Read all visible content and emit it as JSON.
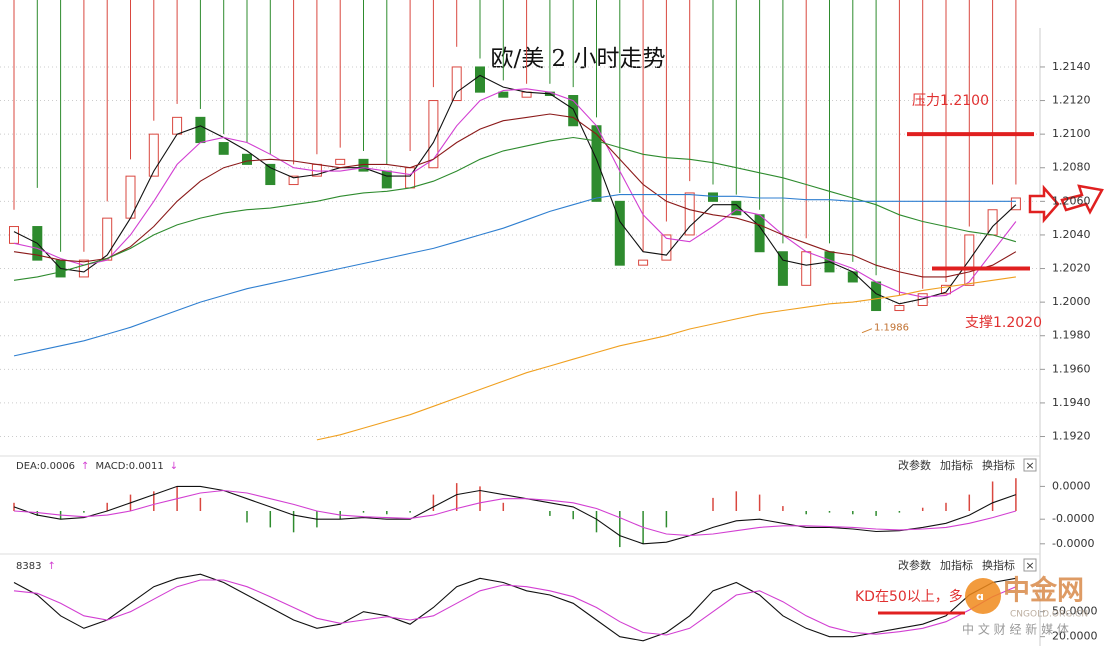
{
  "chart_data": [
    {
      "type": "candlestick",
      "title": "欧/美 2 小时走势",
      "open": [
        1.2035,
        1.2045,
        1.2025,
        1.2015,
        1.2025,
        1.205,
        1.2075,
        1.21,
        1.211,
        1.2095,
        1.2088,
        1.2082,
        1.207,
        1.2075,
        1.2082,
        1.2085,
        1.2078,
        1.2068,
        1.208,
        1.212,
        1.214,
        1.2125,
        1.2122,
        1.2125,
        1.2123,
        1.2105,
        1.206,
        1.2022,
        1.2025,
        1.204,
        1.2065,
        1.206,
        1.2052,
        1.203,
        1.201,
        1.203,
        1.2018,
        1.2012,
        1.1995,
        1.1998,
        1.2005,
        1.201,
        1.204,
        1.2055
      ],
      "high": [
        1.2055,
        1.2068,
        1.203,
        1.203,
        1.206,
        1.2085,
        1.2108,
        1.2118,
        1.2115,
        1.21,
        1.2095,
        1.2088,
        1.2082,
        1.2088,
        1.2092,
        1.209,
        1.2082,
        1.209,
        1.2128,
        1.2152,
        1.2145,
        1.2132,
        1.213,
        1.213,
        1.2128,
        1.211,
        1.2065,
        1.203,
        1.2048,
        1.2072,
        1.207,
        1.2064,
        1.2055,
        1.2035,
        1.2038,
        1.2035,
        1.2024,
        1.2016,
        1.2004,
        1.2008,
        1.2012,
        1.2045,
        1.207,
        1.207
      ],
      "low": 1.1986,
      "close": [
        1.2045,
        1.2025,
        1.2015,
        1.2025,
        1.205,
        1.2075,
        1.21,
        1.211,
        1.2095,
        1.2088,
        1.2082,
        1.207,
        1.2075,
        1.2082,
        1.2085,
        1.2078,
        1.2068,
        1.208,
        1.212,
        1.214,
        1.2125,
        1.2122,
        1.2125,
        1.2123,
        1.2105,
        1.206,
        1.2022,
        1.2025,
        1.204,
        1.2065,
        1.206,
        1.2052,
        1.203,
        1.201,
        1.203,
        1.2018,
        1.2012,
        1.1995,
        1.1998,
        1.2005,
        1.201,
        1.204,
        1.2055,
        1.2062
      ],
      "up_color": "#d9473f",
      "down_color": "#2e8b2e",
      "series": [
        {
          "color": "#111111",
          "values": [
            1.2042,
            1.2035,
            1.202,
            1.2018,
            1.2028,
            1.205,
            1.2078,
            1.21,
            1.2105,
            1.2098,
            1.209,
            1.208,
            1.2074,
            1.2076,
            1.208,
            1.208,
            1.2075,
            1.2075,
            1.2095,
            1.2125,
            1.2135,
            1.2128,
            1.2125,
            1.2124,
            1.2115,
            1.2085,
            1.2048,
            1.203,
            1.2028,
            1.2045,
            1.2058,
            1.2058,
            1.2045,
            1.2025,
            1.2022,
            1.2024,
            1.2018,
            1.2005,
            1.1999,
            1.2002,
            1.2006,
            1.2025,
            1.2045,
            1.2058
          ]
        },
        {
          "color": "#d23fd2",
          "values": [
            1.2035,
            1.2032,
            1.2026,
            1.2022,
            1.2025,
            1.204,
            1.206,
            1.2082,
            1.2095,
            1.2098,
            1.2095,
            1.2088,
            1.208,
            1.2078,
            1.2078,
            1.208,
            1.2078,
            1.2076,
            1.2085,
            1.2105,
            1.212,
            1.2126,
            1.2127,
            1.2125,
            1.212,
            1.2105,
            1.2078,
            1.2052,
            1.2038,
            1.2036,
            1.2045,
            1.2055,
            1.2052,
            1.204,
            1.203,
            1.2025,
            1.202,
            1.2012,
            1.2006,
            1.2003,
            1.2004,
            1.2012,
            1.203,
            1.2048
          ]
        },
        {
          "color": "#8b1a1a",
          "values": [
            1.203,
            1.2028,
            1.2025,
            1.2024,
            1.2026,
            1.2033,
            1.2045,
            1.206,
            1.2072,
            1.208,
            1.2084,
            1.2085,
            1.2084,
            1.2082,
            1.208,
            1.2082,
            1.2082,
            1.208,
            1.2085,
            1.2095,
            1.2103,
            1.2108,
            1.211,
            1.2112,
            1.211,
            1.21,
            1.2085,
            1.207,
            1.206,
            1.2055,
            1.2052,
            1.205,
            1.2046,
            1.204,
            1.2035,
            1.203,
            1.2028,
            1.2022,
            1.2018,
            1.2015,
            1.2015,
            1.2018,
            1.2022,
            1.203
          ]
        },
        {
          "color": "#2e8b2e",
          "values": [
            1.2013,
            1.2015,
            1.2018,
            1.2022,
            1.2026,
            1.2032,
            1.204,
            1.2046,
            1.205,
            1.2053,
            1.2055,
            1.2056,
            1.2058,
            1.206,
            1.2063,
            1.2065,
            1.2066,
            1.2068,
            1.2072,
            1.2078,
            1.2085,
            1.209,
            1.2093,
            1.2096,
            1.2098,
            1.2096,
            1.2092,
            1.2088,
            1.2086,
            1.2085,
            1.2083,
            1.208,
            1.2077,
            1.2074,
            1.207,
            1.2066,
            1.2062,
            1.2058,
            1.2052,
            1.2048,
            1.2045,
            1.2042,
            1.204,
            1.2036
          ]
        },
        {
          "color": "#2f7fd0",
          "values": [
            1.1968,
            1.1971,
            1.1974,
            1.1977,
            1.1981,
            1.1985,
            1.199,
            1.1995,
            1.2,
            1.2004,
            1.2008,
            1.2011,
            1.2014,
            1.2017,
            1.202,
            1.2023,
            1.2026,
            1.2029,
            1.2032,
            1.2036,
            1.204,
            1.2044,
            1.2049,
            1.2054,
            1.2058,
            1.2062,
            1.2064,
            1.2064,
            1.2064,
            1.2064,
            1.2063,
            1.2063,
            1.2062,
            1.2062,
            1.2061,
            1.2061,
            1.206,
            1.206,
            1.206,
            1.206,
            1.206,
            1.206,
            1.206,
            1.206
          ]
        },
        {
          "color": "#f0a020",
          "values": [
            null,
            null,
            null,
            null,
            null,
            null,
            null,
            null,
            null,
            null,
            null,
            null,
            null,
            1.1918,
            1.1921,
            1.1925,
            1.1929,
            1.1933,
            1.1938,
            1.1943,
            1.1948,
            1.1953,
            1.1958,
            1.1962,
            1.1966,
            1.197,
            1.1974,
            1.1977,
            1.198,
            1.1984,
            1.1987,
            1.199,
            1.1993,
            1.1995,
            1.1997,
            1.1999,
            1.2,
            1.2002,
            1.2004,
            1.2007,
            1.2009,
            1.2011,
            1.2013,
            1.2015
          ]
        }
      ],
      "ylim": [
        1.1909,
        1.2162
      ],
      "yticks": [
        {
          "value": 1.214,
          "label": "1.2140"
        },
        {
          "value": 1.212,
          "label": "1.2120"
        },
        {
          "value": 1.21,
          "label": "1.2100"
        },
        {
          "value": 1.208,
          "label": "1.2080"
        },
        {
          "value": 1.206,
          "label": "1.2060"
        },
        {
          "value": 1.204,
          "label": "1.2040"
        },
        {
          "value": 1.202,
          "label": "1.2020"
        },
        {
          "value": 1.2,
          "label": "1.2000"
        },
        {
          "value": 1.198,
          "label": "1.1980"
        },
        {
          "value": 1.196,
          "label": "1.1960"
        },
        {
          "value": 1.194,
          "label": "1.1940"
        },
        {
          "value": 1.192,
          "label": "1.1920"
        }
      ],
      "grid": true,
      "levels": [
        {
          "value": 1.21,
          "label": "压力1.2100"
        },
        {
          "value": 1.202,
          "label": "支撑1.2020"
        }
      ]
    },
    {
      "type": "macd",
      "header": [
        "DEA:0.0006",
        "↑",
        "MACD:0.0011",
        "↓"
      ],
      "buttons": [
        "改参数",
        "加指标",
        "换指标",
        "×"
      ],
      "values": [
        1e-05,
        -6e-06,
        -1e-05,
        -2e-06,
        1e-05,
        2e-05,
        2.4e-05,
        3e-05,
        1.6e-05,
        0,
        -1.4e-05,
        -2e-05,
        -2.6e-05,
        -2e-05,
        -1e-05,
        -2e-06,
        -4e-06,
        -2e-06,
        2e-05,
        3.4e-05,
        3e-05,
        1e-05,
        0,
        -6e-06,
        -1e-05,
        -2.6e-05,
        -4.4e-05,
        -4e-05,
        -2e-05,
        0,
        1.6e-05,
        2.4e-05,
        2e-05,
        6e-06,
        -4e-06,
        -2e-06,
        -4e-06,
        -6e-06,
        -2e-06,
        4e-06,
        1e-05,
        2e-05,
        3.6e-05,
        4e-05
      ],
      "up_color": "#d9473f",
      "down_color": "#2e8b2e",
      "series": [
        {
          "color": "#111111",
          "values": [
            5e-06,
            -5e-06,
            -1e-05,
            -8e-06,
            0,
            1e-05,
            2e-05,
            3e-05,
            3e-05,
            2.5e-05,
            1.5e-05,
            5e-06,
            -5e-06,
            -1e-05,
            -1e-05,
            -8e-06,
            -1e-05,
            -1e-05,
            5e-06,
            2e-05,
            2.5e-05,
            2e-05,
            1.5e-05,
            1e-05,
            5e-06,
            -1e-05,
            -3e-05,
            -4e-05,
            -3.8e-05,
            -3e-05,
            -2e-05,
            -1.2e-05,
            -1e-05,
            -1.5e-05,
            -2e-05,
            -2e-05,
            -2.2e-05,
            -2.5e-05,
            -2.4e-05,
            -2e-05,
            -1.5e-05,
            -5e-06,
            1e-05,
            2e-05
          ]
        },
        {
          "color": "#d23fd2",
          "values": [
            0,
            -2e-06,
            -5e-06,
            -7e-06,
            -5e-06,
            0,
            8e-06,
            1.5e-05,
            2.2e-05,
            2.5e-05,
            2.2e-05,
            1.5e-05,
            8e-06,
            0,
            -5e-06,
            -7e-06,
            -8e-06,
            -9e-06,
            -5e-06,
            3e-06,
            1e-05,
            1.5e-05,
            1.5e-05,
            1.3e-05,
            1e-05,
            3e-06,
            -8e-06,
            -2e-05,
            -2.8e-05,
            -3e-05,
            -2.8e-05,
            -2.4e-05,
            -2e-05,
            -1.8e-05,
            -1.8e-05,
            -1.9e-05,
            -2e-05,
            -2.2e-05,
            -2.3e-05,
            -2.2e-05,
            -2e-05,
            -1.5e-05,
            -8e-06,
            0
          ]
        }
      ],
      "ylim": [
        -5e-05,
        5e-05
      ],
      "yticks": [
        {
          "value": 3e-05,
          "label": "0.0000"
        },
        {
          "value": -1e-05,
          "label": "-0.0000"
        },
        {
          "value": -4e-05,
          "label": "-0.0000"
        }
      ]
    },
    {
      "type": "kd",
      "header": [
        "8383",
        "↑"
      ],
      "buttons": [
        "改参数",
        "加指标",
        "换指标",
        "×"
      ],
      "series": [
        {
          "color": "#111111",
          "values": [
            85,
            70,
            45,
            30,
            40,
            60,
            80,
            90,
            95,
            85,
            70,
            55,
            40,
            30,
            35,
            50,
            45,
            35,
            55,
            80,
            90,
            85,
            75,
            70,
            60,
            40,
            20,
            15,
            25,
            45,
            75,
            85,
            70,
            45,
            30,
            20,
            20,
            25,
            30,
            35,
            45,
            70,
            85,
            90
          ]
        },
        {
          "color": "#d23fd2",
          "values": [
            75,
            72,
            60,
            45,
            40,
            50,
            65,
            80,
            88,
            88,
            80,
            68,
            55,
            42,
            36,
            40,
            44,
            40,
            45,
            60,
            75,
            82,
            80,
            75,
            68,
            55,
            38,
            25,
            22,
            30,
            50,
            70,
            75,
            62,
            45,
            32,
            25,
            23,
            26,
            30,
            38,
            52,
            68,
            80
          ]
        }
      ],
      "ylim": [
        10,
        100
      ],
      "yticks": [
        {
          "value": 50,
          "label": "50.0000"
        },
        {
          "value": 20,
          "label": "20.0000"
        }
      ],
      "annotation": "KD在50以上，多"
    }
  ],
  "watermark": {
    "name": "中金网",
    "site": "CNGOLD.ORG.CN",
    "slogan": "中 文 财 经 新 媒 体"
  }
}
